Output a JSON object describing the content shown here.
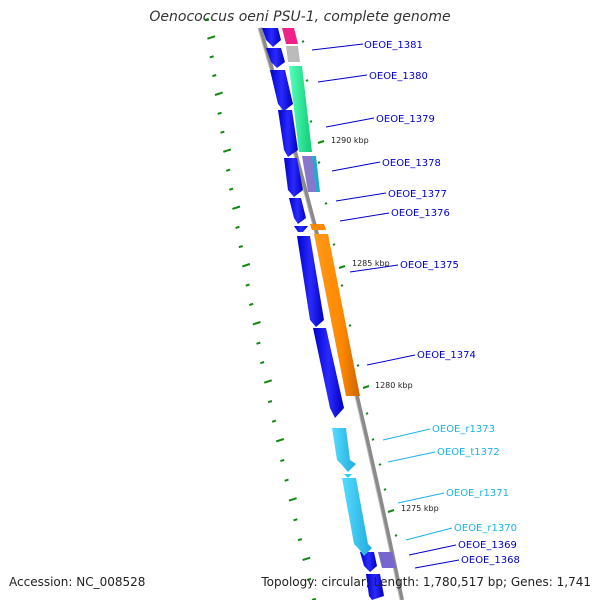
{
  "map_title": "Oenococcus oeni PSU-1, complete genome",
  "accession": "Accession: NC_008528",
  "summary": "Topology: circular; Length: 1,780,517 bp; Genes: 1,741",
  "colors": {
    "backbone": "#808080",
    "forward_strand": "#0000ee",
    "rrna": "#33ccee",
    "gc_ticks": "#118811",
    "label_text": "#0000cc",
    "label_text_rna": "#1ab2e6"
  },
  "scale_ticks": [
    {
      "kbp": 1290,
      "label": "1290 kbp"
    },
    {
      "kbp": 1285,
      "label": "1285 kbp"
    },
    {
      "kbp": 1280,
      "label": "1280 kbp"
    },
    {
      "kbp": 1275,
      "label": "1275 kbp"
    }
  ],
  "gene_labels": [
    {
      "name": "OEOE_1381",
      "color": "#0000cc"
    },
    {
      "name": "OEOE_1380",
      "color": "#0000cc"
    },
    {
      "name": "OEOE_1379",
      "color": "#0000cc"
    },
    {
      "name": "OEOE_1378",
      "color": "#0000cc"
    },
    {
      "name": "OEOE_1377",
      "color": "#0000cc"
    },
    {
      "name": "OEOE_1376",
      "color": "#0000cc"
    },
    {
      "name": "OEOE_1375",
      "color": "#0000cc"
    },
    {
      "name": "OEOE_1374",
      "color": "#0000cc"
    },
    {
      "name": "OEOE_r1373",
      "color": "#1ab2e6"
    },
    {
      "name": "OEOE_t1372",
      "color": "#1ab2e6"
    },
    {
      "name": "OEOE_r1371",
      "color": "#1ab2e6"
    },
    {
      "name": "OEOE_r1370",
      "color": "#1ab2e6"
    },
    {
      "name": "OEOE_1369",
      "color": "#0000cc"
    },
    {
      "name": "OEOE_1368",
      "color": "#0000cc"
    }
  ],
  "feature_blocks": [
    {
      "name": "OEOE_1381",
      "color": "#ee2288"
    },
    {
      "name": "OEOE_1380",
      "color": "#22ee99"
    },
    {
      "name": "OEOE_1378",
      "color": "#8877cc"
    },
    {
      "name": "OEOE_1376",
      "color": "#ff8800"
    },
    {
      "name": "OEOE_1375",
      "color": "#ff8800"
    },
    {
      "name": "OEOE_1369",
      "color": "#7766cc"
    }
  ]
}
